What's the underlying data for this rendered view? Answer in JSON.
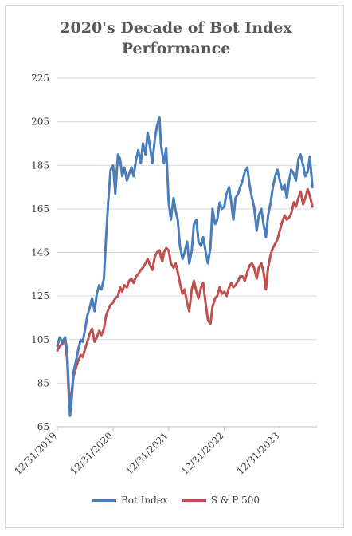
{
  "chart_data": {
    "type": "line",
    "title": "2020's Decade of Bot Index Performance",
    "title_lines": [
      "2020's Decade of Bot Index",
      "Performance"
    ],
    "xlabel": "",
    "ylabel": "",
    "ylim": [
      65,
      225
    ],
    "yticks": [
      65,
      85,
      105,
      125,
      145,
      165,
      185,
      205,
      225
    ],
    "xlim": [
      "2019-12-31",
      "2024-08-31"
    ],
    "xticks": [
      "12/31/2019",
      "12/31/2020",
      "12/31/2021",
      "12/31/2022",
      "12/31/2023"
    ],
    "xtick_dates": [
      "2019-12-31",
      "2020-12-31",
      "2021-12-31",
      "2022-12-31",
      "2023-12-31"
    ],
    "grid": "horizontal",
    "legend": "bottom",
    "series": [
      {
        "name": "Bot Index",
        "color": "#4a7ebb",
        "x": [
          "2019-12-31",
          "2020-01-15",
          "2020-02-01",
          "2020-02-20",
          "2020-03-05",
          "2020-03-16",
          "2020-03-23",
          "2020-04-01",
          "2020-04-15",
          "2020-05-01",
          "2020-05-15",
          "2020-06-01",
          "2020-06-15",
          "2020-07-01",
          "2020-07-15",
          "2020-08-01",
          "2020-08-15",
          "2020-09-01",
          "2020-09-15",
          "2020-10-01",
          "2020-10-15",
          "2020-11-01",
          "2020-11-15",
          "2020-12-01",
          "2020-12-15",
          "2020-12-31",
          "2021-01-15",
          "2021-02-01",
          "2021-02-15",
          "2021-03-01",
          "2021-03-15",
          "2021-04-01",
          "2021-04-15",
          "2021-05-01",
          "2021-05-15",
          "2021-06-01",
          "2021-06-15",
          "2021-07-01",
          "2021-07-15",
          "2021-08-01",
          "2021-08-15",
          "2021-09-01",
          "2021-09-15",
          "2021-10-01",
          "2021-10-15",
          "2021-11-01",
          "2021-11-10",
          "2021-11-20",
          "2021-12-01",
          "2021-12-15",
          "2021-12-31",
          "2022-01-15",
          "2022-02-01",
          "2022-02-15",
          "2022-03-01",
          "2022-03-15",
          "2022-04-01",
          "2022-04-15",
          "2022-05-01",
          "2022-05-15",
          "2022-06-01",
          "2022-06-15",
          "2022-07-01",
          "2022-07-15",
          "2022-08-01",
          "2022-08-15",
          "2022-09-01",
          "2022-09-15",
          "2022-10-01",
          "2022-10-15",
          "2022-11-01",
          "2022-11-15",
          "2022-12-01",
          "2022-12-15",
          "2022-12-31",
          "2023-01-15",
          "2023-02-01",
          "2023-02-15",
          "2023-03-01",
          "2023-03-15",
          "2023-04-01",
          "2023-04-15",
          "2023-05-01",
          "2023-05-15",
          "2023-06-01",
          "2023-06-15",
          "2023-07-01",
          "2023-07-15",
          "2023-08-01",
          "2023-08-15",
          "2023-09-01",
          "2023-09-15",
          "2023-10-01",
          "2023-10-15",
          "2023-11-01",
          "2023-11-15",
          "2023-12-01",
          "2023-12-15",
          "2023-12-31",
          "2024-01-15",
          "2024-02-01",
          "2024-02-15",
          "2024-03-01",
          "2024-03-15",
          "2024-04-01",
          "2024-04-15",
          "2024-05-01",
          "2024-05-15",
          "2024-06-01",
          "2024-06-15",
          "2024-07-01",
          "2024-07-15",
          "2024-08-01"
        ],
        "values": [
          102,
          106,
          104,
          106,
          99,
          82,
          70,
          75,
          90,
          95,
          100,
          105,
          104,
          110,
          116,
          120,
          124,
          118,
          126,
          130,
          128,
          133,
          152,
          170,
          183,
          185,
          172,
          190,
          188,
          180,
          184,
          178,
          181,
          184,
          180,
          188,
          192,
          186,
          195,
          190,
          200,
          193,
          186,
          197,
          203,
          207,
          195,
          190,
          186,
          193,
          168,
          160,
          170,
          164,
          160,
          148,
          142,
          145,
          150,
          140,
          146,
          158,
          160,
          150,
          148,
          152,
          145,
          140,
          147,
          165,
          158,
          160,
          168,
          165,
          166,
          172,
          175,
          168,
          160,
          170,
          172,
          175,
          178,
          182,
          184,
          176,
          170,
          166,
          155,
          162,
          165,
          158,
          152,
          162,
          168,
          175,
          180,
          183,
          178,
          174,
          176,
          170,
          178,
          183,
          181,
          178,
          188,
          190,
          185,
          180,
          182,
          189,
          175
        ]
      },
      {
        "name": "S & P 500",
        "color": "#c0504d",
        "x": [
          "2019-12-31",
          "2020-01-15",
          "2020-02-01",
          "2020-02-20",
          "2020-03-05",
          "2020-03-16",
          "2020-03-23",
          "2020-04-01",
          "2020-04-15",
          "2020-05-01",
          "2020-05-15",
          "2020-06-01",
          "2020-06-15",
          "2020-07-01",
          "2020-07-15",
          "2020-08-01",
          "2020-08-15",
          "2020-09-01",
          "2020-09-15",
          "2020-10-01",
          "2020-10-15",
          "2020-11-01",
          "2020-11-15",
          "2020-12-01",
          "2020-12-15",
          "2020-12-31",
          "2021-01-15",
          "2021-02-01",
          "2021-02-15",
          "2021-03-01",
          "2021-03-15",
          "2021-04-01",
          "2021-04-15",
          "2021-05-01",
          "2021-05-15",
          "2021-06-01",
          "2021-06-15",
          "2021-07-01",
          "2021-07-15",
          "2021-08-01",
          "2021-08-15",
          "2021-09-01",
          "2021-09-15",
          "2021-10-01",
          "2021-10-15",
          "2021-11-01",
          "2021-11-10",
          "2021-11-20",
          "2021-12-01",
          "2021-12-15",
          "2021-12-31",
          "2022-01-15",
          "2022-02-01",
          "2022-02-15",
          "2022-03-01",
          "2022-03-15",
          "2022-04-01",
          "2022-04-15",
          "2022-05-01",
          "2022-05-15",
          "2022-06-01",
          "2022-06-15",
          "2022-07-01",
          "2022-07-15",
          "2022-08-01",
          "2022-08-15",
          "2022-09-01",
          "2022-09-15",
          "2022-10-01",
          "2022-10-15",
          "2022-11-01",
          "2022-11-15",
          "2022-12-01",
          "2022-12-15",
          "2022-12-31",
          "2023-01-15",
          "2023-02-01",
          "2023-02-15",
          "2023-03-01",
          "2023-03-15",
          "2023-04-01",
          "2023-04-15",
          "2023-05-01",
          "2023-05-15",
          "2023-06-01",
          "2023-06-15",
          "2023-07-01",
          "2023-07-15",
          "2023-08-01",
          "2023-08-15",
          "2023-09-01",
          "2023-09-15",
          "2023-10-01",
          "2023-10-15",
          "2023-11-01",
          "2023-11-15",
          "2023-12-01",
          "2023-12-15",
          "2023-12-31",
          "2024-01-15",
          "2024-02-01",
          "2024-02-15",
          "2024-03-01",
          "2024-03-15",
          "2024-04-01",
          "2024-04-15",
          "2024-05-01",
          "2024-05-15",
          "2024-06-01",
          "2024-06-15",
          "2024-07-01",
          "2024-07-15",
          "2024-08-01"
        ],
        "values": [
          100,
          102,
          103,
          104,
          96,
          78,
          72,
          80,
          88,
          92,
          95,
          98,
          97,
          101,
          104,
          108,
          110,
          104,
          106,
          109,
          107,
          110,
          116,
          119,
          121,
          122,
          124,
          125,
          129,
          127,
          130,
          129,
          132,
          133,
          131,
          134,
          135,
          137,
          138,
          140,
          142,
          139,
          137,
          143,
          145,
          146,
          143,
          141,
          145,
          147,
          146,
          140,
          138,
          140,
          136,
          131,
          126,
          128,
          122,
          118,
          128,
          132,
          127,
          124,
          129,
          131,
          121,
          114,
          112,
          120,
          124,
          125,
          129,
          126,
          127,
          125,
          129,
          131,
          129,
          130,
          132,
          134,
          134,
          132,
          136,
          139,
          140,
          138,
          133,
          138,
          140,
          136,
          128,
          138,
          144,
          147,
          149,
          151,
          155,
          159,
          162,
          160,
          161,
          163,
          168,
          166,
          170,
          173,
          167,
          170,
          174,
          171,
          166
        ]
      }
    ]
  }
}
